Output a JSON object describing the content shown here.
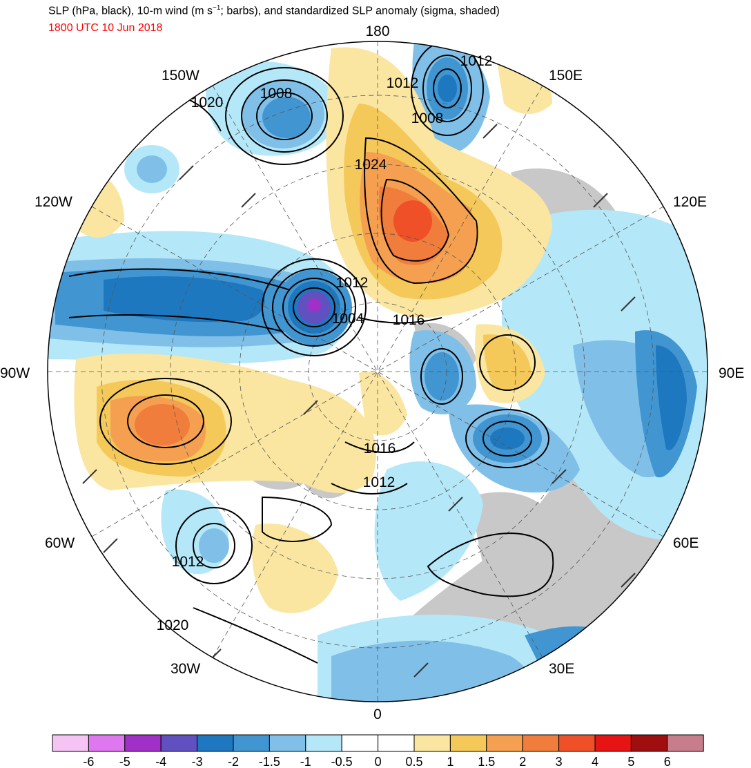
{
  "header": {
    "title_pre": "SLP (hPa, black), 10-m wind (m s",
    "title_sup": "−1",
    "title_post": "; barbs), and standardized SLP anomaly (sigma, shaded)",
    "valid_time": "1800 UTC 10 Jun 2018",
    "valid_time_color": "#ff0000"
  },
  "map": {
    "projection": "north polar stereographic",
    "longitude_labels": [
      {
        "text": "180"
      },
      {
        "text": "150E"
      },
      {
        "text": "120E"
      },
      {
        "text": "90E"
      },
      {
        "text": "60E"
      },
      {
        "text": "30E"
      },
      {
        "text": "0"
      },
      {
        "text": "30W"
      },
      {
        "text": "60W"
      },
      {
        "text": "90W"
      },
      {
        "text": "120W"
      },
      {
        "text": "150W"
      }
    ],
    "contour_labels": [
      "1012",
      "1012",
      "1008",
      "1008",
      "1020",
      "1024",
      "1012",
      "1004",
      "1016",
      "1016",
      "1012",
      "1012",
      "1020"
    ],
    "land_mask_color": "#c8c8c8"
  },
  "colorbar": {
    "tick_labels": [
      "-6",
      "-5",
      "-4",
      "-3",
      "-2",
      "-1.5",
      "-1",
      "-0.5",
      "0",
      "0.5",
      "1",
      "1.5",
      "2",
      "3",
      "4",
      "5",
      "6"
    ],
    "colors": [
      "#f5c4f5",
      "#df78f0",
      "#a030c8",
      "#6050c0",
      "#1e78c0",
      "#4196d2",
      "#80c0e8",
      "#b4e8f8",
      "#ffffff",
      "#ffffff",
      "#fae6a0",
      "#f5c85a",
      "#f5a050",
      "#f07d3c",
      "#f05028",
      "#e61414",
      "#a00f0f",
      "#c87d8c"
    ]
  }
}
